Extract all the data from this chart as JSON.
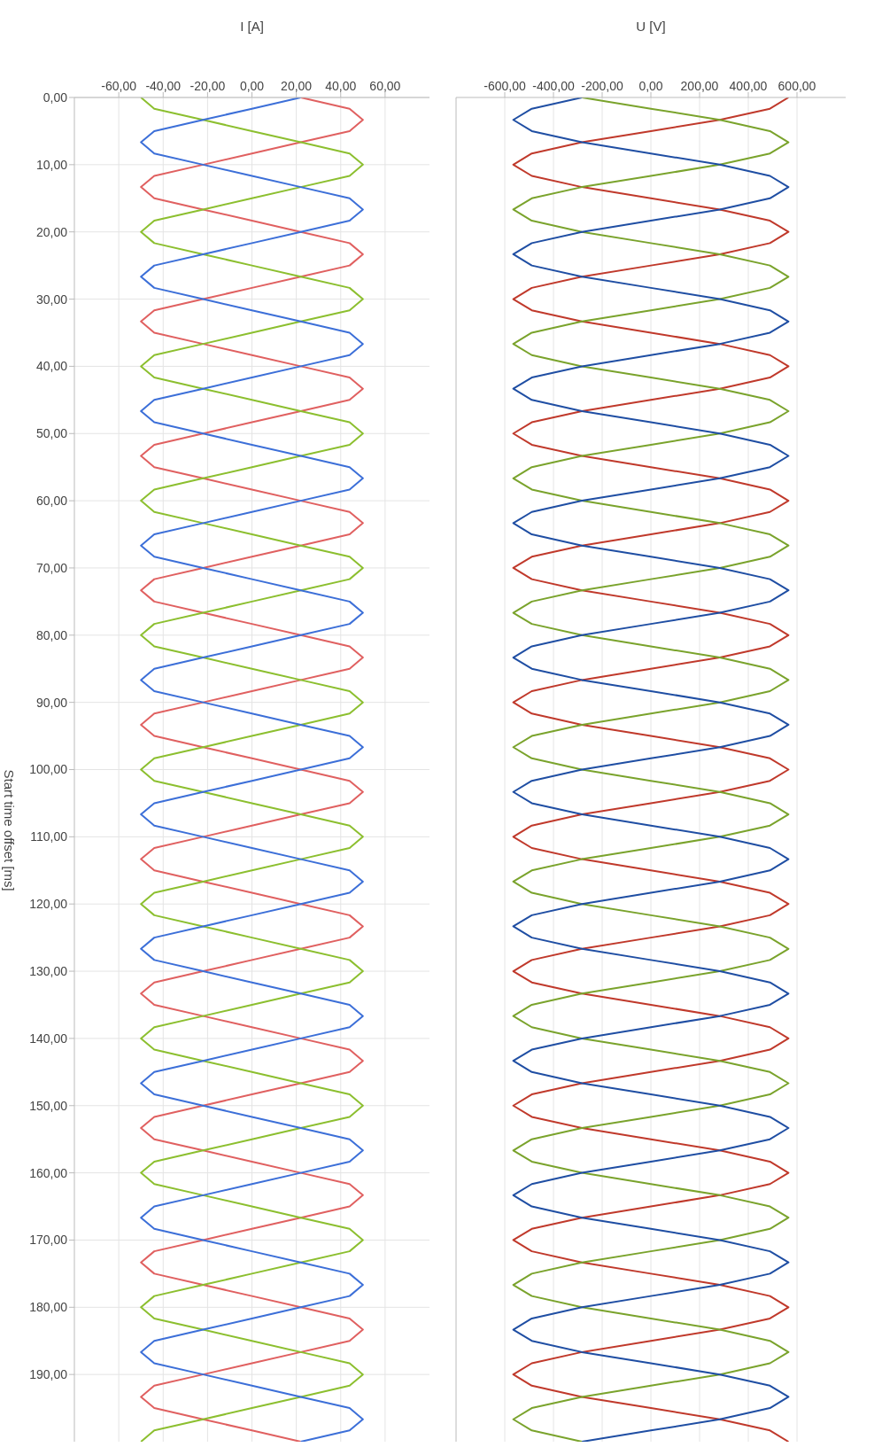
{
  "chart_data": [
    {
      "type": "line",
      "orientation": "horizontal",
      "xlabel": "U [V]",
      "tick_labels": "x",
      "grid": true,
      "legend": false,
      "marker": "none",
      "line_style": "solid",
      "ylim": [
        200,
        0
      ],
      "yticks": [
        {
          "value": 0,
          "label": null
        },
        {
          "value": 10,
          "label": null
        },
        {
          "value": 20,
          "label": null
        },
        {
          "value": 30,
          "label": null
        },
        {
          "value": 40,
          "label": null
        },
        {
          "value": 50,
          "label": null
        },
        {
          "value": 60,
          "label": null
        },
        {
          "value": 70,
          "label": null
        },
        {
          "value": 80,
          "label": null
        },
        {
          "value": 90,
          "label": null
        },
        {
          "value": 100,
          "label": null
        },
        {
          "value": 110,
          "label": null
        },
        {
          "value": 120,
          "label": null
        },
        {
          "value": 130,
          "label": null
        },
        {
          "value": 140,
          "label": null
        },
        {
          "value": 150,
          "label": null
        },
        {
          "value": 160,
          "label": null
        },
        {
          "value": 170,
          "label": null
        },
        {
          "value": 180,
          "label": null
        },
        {
          "value": 190,
          "label": null
        }
      ],
      "xlim": [
        -800,
        800
      ],
      "xticks": [
        {
          "value": -600,
          "label": "-600,00"
        },
        {
          "value": -400,
          "label": "-400,00"
        },
        {
          "value": -200,
          "label": "-200,00"
        },
        {
          "value": 0,
          "label": "0,00"
        },
        {
          "value": 200,
          "label": "200,00"
        },
        {
          "value": 400,
          "label": "400,00"
        },
        {
          "value": 600,
          "label": "600,00"
        }
      ],
      "x": [
        0,
        1.67,
        3.33,
        5,
        6.67,
        8.33,
        10,
        11.67,
        13.33,
        15,
        16.67,
        18.33,
        20,
        21.67,
        23.33,
        25,
        26.67,
        28.33,
        30,
        31.67,
        33.33,
        35,
        36.67,
        38.33,
        40,
        41.67,
        43.33,
        45,
        46.67,
        48.33,
        50,
        51.67,
        53.33,
        55,
        56.67,
        58.33,
        60,
        61.67,
        63.33,
        65,
        66.67,
        68.33,
        70,
        71.67,
        73.33,
        75,
        76.67,
        78.33,
        80,
        81.67,
        83.33,
        85,
        86.67,
        88.33,
        90,
        91.67,
        93.33,
        95,
        96.67,
        98.33,
        100,
        101.67,
        103.33,
        105,
        106.67,
        108.33,
        110,
        111.67,
        113.33,
        115,
        116.67,
        118.33,
        120,
        121.67,
        123.33,
        125,
        126.67,
        128.33,
        130,
        131.67,
        133.33,
        135,
        136.67,
        138.33,
        140,
        141.67,
        143.33,
        145,
        146.67,
        148.33,
        150,
        151.67,
        153.33,
        155,
        156.67,
        158.33,
        160,
        161.67,
        163.33,
        165,
        166.67,
        168.33,
        170,
        171.67,
        173.33,
        175,
        176.67,
        178.33,
        180,
        181.67,
        183.33,
        185,
        186.67,
        188.33,
        190,
        191.67,
        193.33,
        195,
        196.67,
        198.33,
        200
      ],
      "series": [
        {
          "color": "#c0392b",
          "values": [
            565,
            489,
            283,
            0,
            -283,
            -489,
            -565,
            -489,
            -283,
            0,
            283,
            489,
            565,
            489,
            283,
            0,
            -283,
            -489,
            -565,
            -489,
            -283,
            0,
            283,
            489,
            565,
            489,
            283,
            0,
            -283,
            -489,
            -565,
            -489,
            -283,
            0,
            283,
            489,
            565,
            489,
            283,
            0,
            -283,
            -489,
            -565,
            -489,
            -283,
            0,
            283,
            489,
            565,
            489,
            283,
            0,
            -283,
            -489,
            -565,
            -489,
            -283,
            0,
            283,
            489,
            565,
            489,
            283,
            0,
            -283,
            -489,
            -565,
            -489,
            -283,
            0,
            283,
            489,
            565,
            489,
            283,
            0,
            -283,
            -489,
            -565,
            -489,
            -283,
            0,
            283,
            489,
            565,
            489,
            283,
            0,
            -283,
            -489,
            -565,
            -489,
            -283,
            0,
            283,
            489,
            565,
            489,
            283,
            0,
            -283,
            -489,
            -565,
            -489,
            -283,
            0,
            283,
            489,
            565,
            489,
            283,
            0,
            -283,
            -489,
            -565,
            -489,
            -283,
            0,
            283,
            489,
            565
          ]
        },
        {
          "color": "#7aa32c",
          "values": [
            -283,
            0,
            283,
            489,
            565,
            489,
            283,
            0,
            -283,
            -489,
            -565,
            -489,
            -283,
            0,
            283,
            489,
            565,
            489,
            283,
            0,
            -283,
            -489,
            -565,
            -489,
            -283,
            0,
            283,
            489,
            565,
            489,
            283,
            0,
            -283,
            -489,
            -565,
            -489,
            -283,
            0,
            283,
            489,
            565,
            489,
            283,
            0,
            -283,
            -489,
            -565,
            -489,
            -283,
            0,
            283,
            489,
            565,
            489,
            283,
            0,
            -283,
            -489,
            -565,
            -489,
            -283,
            0,
            283,
            489,
            565,
            489,
            283,
            0,
            -283,
            -489,
            -565,
            -489,
            -283,
            0,
            283,
            489,
            565,
            489,
            283,
            0,
            -283,
            -489,
            -565,
            -489,
            -283,
            0,
            283,
            489,
            565,
            489,
            283,
            0,
            -283,
            -489,
            -565,
            -489,
            -283,
            0,
            283,
            489,
            565,
            489,
            283,
            0,
            -283,
            -489,
            -565,
            -489,
            -283,
            0,
            283,
            489,
            565,
            489,
            283,
            0,
            -283,
            -489,
            -565,
            -489,
            -283
          ]
        },
        {
          "color": "#1f4ea3",
          "values": [
            -283,
            -489,
            -565,
            -489,
            -283,
            0,
            283,
            489,
            565,
            489,
            283,
            0,
            -283,
            -489,
            -565,
            -489,
            -283,
            0,
            283,
            489,
            565,
            489,
            283,
            0,
            -283,
            -489,
            -565,
            -489,
            -283,
            0,
            283,
            489,
            565,
            489,
            283,
            0,
            -283,
            -489,
            -565,
            -489,
            -283,
            0,
            283,
            489,
            565,
            489,
            283,
            0,
            -283,
            -489,
            -565,
            -489,
            -283,
            0,
            283,
            489,
            565,
            489,
            283,
            0,
            -283,
            -489,
            -565,
            -489,
            -283,
            0,
            283,
            489,
            565,
            489,
            283,
            0,
            -283,
            -489,
            -565,
            -489,
            -283,
            0,
            283,
            489,
            565,
            489,
            283,
            0,
            -283,
            -489,
            -565,
            -489,
            -283,
            0,
            283,
            489,
            565,
            489,
            283,
            0,
            -283,
            -489,
            -565,
            -489,
            -283,
            0,
            283,
            489,
            565,
            489,
            283,
            0,
            -283,
            -489,
            -565,
            -489,
            -283,
            0,
            283,
            489,
            565,
            489,
            283,
            0,
            -283
          ]
        }
      ]
    },
    {
      "type": "line",
      "orientation": "horizontal",
      "xlabel": "I [A]",
      "ylabel": "Start time offset [ms]",
      "grid": true,
      "legend": false,
      "marker": "none",
      "line_style": "solid",
      "ylim": [
        200,
        0
      ],
      "yticks": [
        {
          "value": 0,
          "label": "0,00"
        },
        {
          "value": 10,
          "label": "10,00"
        },
        {
          "value": 20,
          "label": "20,00"
        },
        {
          "value": 30,
          "label": "30,00"
        },
        {
          "value": 40,
          "label": "40,00"
        },
        {
          "value": 50,
          "label": "50,00"
        },
        {
          "value": 60,
          "label": "60,00"
        },
        {
          "value": 70,
          "label": "70,00"
        },
        {
          "value": 80,
          "label": "80,00"
        },
        {
          "value": 90,
          "label": "90,00"
        },
        {
          "value": 100,
          "label": "100,00"
        },
        {
          "value": 110,
          "label": "110,00"
        },
        {
          "value": 120,
          "label": "120,00"
        },
        {
          "value": 130,
          "label": "130,00"
        },
        {
          "value": 140,
          "label": "140,00"
        },
        {
          "value": 150,
          "label": "150,00"
        },
        {
          "value": 160,
          "label": "160,00"
        },
        {
          "value": 170,
          "label": "170,00"
        },
        {
          "value": 180,
          "label": "180,00"
        },
        {
          "value": 190,
          "label": "190,00"
        }
      ],
      "xlim": [
        -80,
        80
      ],
      "xticks": [
        {
          "value": -60,
          "label": "-60,00"
        },
        {
          "value": -40,
          "label": "-40,00"
        },
        {
          "value": -20,
          "label": "-20,00"
        },
        {
          "value": 0,
          "label": "0,00"
        },
        {
          "value": 20,
          "label": "20,00"
        },
        {
          "value": 40,
          "label": "40,00"
        },
        {
          "value": 60,
          "label": "60,00"
        }
      ],
      "x": [
        0,
        1.67,
        3.33,
        5,
        6.67,
        8.33,
        10,
        11.67,
        13.33,
        15,
        16.67,
        18.33,
        20,
        21.67,
        23.33,
        25,
        26.67,
        28.33,
        30,
        31.67,
        33.33,
        35,
        36.67,
        38.33,
        40,
        41.67,
        43.33,
        45,
        46.67,
        48.33,
        50,
        51.67,
        53.33,
        55,
        56.67,
        58.33,
        60,
        61.67,
        63.33,
        65,
        66.67,
        68.33,
        70,
        71.67,
        73.33,
        75,
        76.67,
        78.33,
        80,
        81.67,
        83.33,
        85,
        86.67,
        88.33,
        90,
        91.67,
        93.33,
        95,
        96.67,
        98.33,
        100,
        101.67,
        103.33,
        105,
        106.67,
        108.33,
        110,
        111.67,
        113.33,
        115,
        116.67,
        118.33,
        120,
        121.67,
        123.33,
        125,
        126.67,
        128.33,
        130,
        131.67,
        133.33,
        135,
        136.67,
        138.33,
        140,
        141.67,
        143.33,
        145,
        146.67,
        148.33,
        150,
        151.67,
        153.33,
        155,
        156.67,
        158.33,
        160,
        161.67,
        163.33,
        165,
        166.67,
        168.33,
        170,
        171.67,
        173.33,
        175,
        176.67,
        178.33,
        180,
        181.67,
        183.33,
        185,
        186.67,
        188.33,
        190,
        191.67,
        193.33,
        195,
        196.67,
        198.33,
        200
      ],
      "series": [
        {
          "color": "#e06060",
          "values": [
            22,
            44,
            50,
            44,
            22,
            0,
            -22,
            -44,
            -50,
            -44,
            -22,
            0,
            22,
            44,
            50,
            44,
            22,
            0,
            -22,
            -44,
            -50,
            -44,
            -22,
            0,
            22,
            44,
            50,
            44,
            22,
            0,
            -22,
            -44,
            -50,
            -44,
            -22,
            0,
            22,
            44,
            50,
            44,
            22,
            0,
            -22,
            -44,
            -50,
            -44,
            -22,
            0,
            22,
            44,
            50,
            44,
            22,
            0,
            -22,
            -44,
            -50,
            -44,
            -22,
            0,
            22,
            44,
            50,
            44,
            22,
            0,
            -22,
            -44,
            -50,
            -44,
            -22,
            0,
            22,
            44,
            50,
            44,
            22,
            0,
            -22,
            -44,
            -50,
            -44,
            -22,
            0,
            22,
            44,
            50,
            44,
            22,
            0,
            -22,
            -44,
            -50,
            -44,
            -22,
            0,
            22,
            44,
            50,
            44,
            22,
            0,
            -22,
            -44,
            -50,
            -44,
            -22,
            0,
            22,
            44,
            50,
            44,
            22,
            0,
            -22,
            -44,
            -50,
            -44,
            -22,
            0,
            22
          ]
        },
        {
          "color": "#8cbf2f",
          "values": [
            -50,
            -44,
            -22,
            0,
            22,
            44,
            50,
            44,
            22,
            0,
            -22,
            -44,
            -50,
            -44,
            -22,
            0,
            22,
            44,
            50,
            44,
            22,
            0,
            -22,
            -44,
            -50,
            -44,
            -22,
            0,
            22,
            44,
            50,
            44,
            22,
            0,
            -22,
            -44,
            -50,
            -44,
            -22,
            0,
            22,
            44,
            50,
            44,
            22,
            0,
            -22,
            -44,
            -50,
            -44,
            -22,
            0,
            22,
            44,
            50,
            44,
            22,
            0,
            -22,
            -44,
            -50,
            -44,
            -22,
            0,
            22,
            44,
            50,
            44,
            22,
            0,
            -22,
            -44,
            -50,
            -44,
            -22,
            0,
            22,
            44,
            50,
            44,
            22,
            0,
            -22,
            -44,
            -50,
            -44,
            -22,
            0,
            22,
            44,
            50,
            44,
            22,
            0,
            -22,
            -44,
            -50,
            -44,
            -22,
            0,
            22,
            44,
            50,
            44,
            22,
            0,
            -22,
            -44,
            -50,
            -44,
            -22,
            0,
            22,
            44,
            50,
            44,
            22,
            0,
            -22,
            -44,
            -50
          ]
        },
        {
          "color": "#3c6fd8",
          "values": [
            22,
            0,
            -22,
            -44,
            -50,
            -44,
            -22,
            0,
            22,
            44,
            50,
            44,
            22,
            0,
            -22,
            -44,
            -50,
            -44,
            -22,
            0,
            22,
            44,
            50,
            44,
            22,
            0,
            -22,
            -44,
            -50,
            -44,
            -22,
            0,
            22,
            44,
            50,
            44,
            22,
            0,
            -22,
            -44,
            -50,
            -44,
            -22,
            0,
            22,
            44,
            50,
            44,
            22,
            0,
            -22,
            -44,
            -50,
            -44,
            -22,
            0,
            22,
            44,
            50,
            44,
            22,
            0,
            -22,
            -44,
            -50,
            -44,
            -22,
            0,
            22,
            44,
            50,
            44,
            22,
            0,
            -22,
            -44,
            -50,
            -44,
            -22,
            0,
            22,
            44,
            50,
            44,
            22,
            0,
            -22,
            -44,
            -50,
            -44,
            -22,
            0,
            22,
            44,
            50,
            44,
            22,
            0,
            -22,
            -44,
            -50,
            -44,
            -22,
            0,
            22,
            44,
            50,
            44,
            22,
            0,
            -22,
            -44,
            -50,
            -44,
            -22,
            0,
            22,
            44,
            50,
            44,
            22
          ]
        }
      ]
    }
  ]
}
